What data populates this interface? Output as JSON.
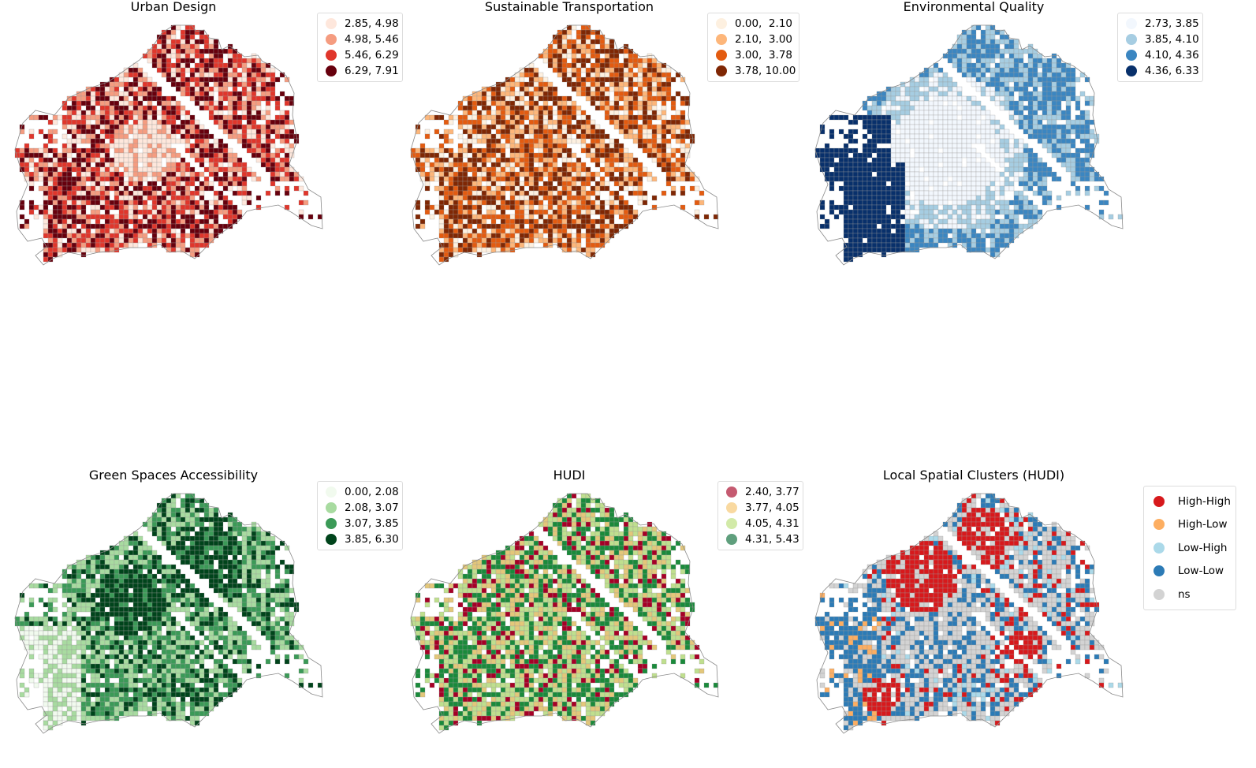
{
  "panels": [
    {
      "title": "Urban Design",
      "legend": [
        {
          "label": "2.85, 4.98",
          "color": "#fee7dc"
        },
        {
          "label": "4.98, 5.46",
          "color": "#f59c80"
        },
        {
          "label": "5.46, 6.29",
          "color": "#e0362b"
        },
        {
          "label": "6.29, 7.91",
          "color": "#67000d"
        }
      ],
      "pattern": "urban"
    },
    {
      "title": "Sustainable Transportation",
      "legend": [
        {
          "label": "0.00,  2.10",
          "color": "#fdf0e0"
        },
        {
          "label": "2.10,  3.00",
          "color": "#fdb67a"
        },
        {
          "label": "3.00,  3.78",
          "color": "#e35b10"
        },
        {
          "label": "3.78, 10.00",
          "color": "#7f2704"
        }
      ],
      "pattern": "transport"
    },
    {
      "title": "Environmental Quality",
      "legend": [
        {
          "label": "2.73, 3.85",
          "color": "#f2f7fd"
        },
        {
          "label": "3.85, 4.10",
          "color": "#a6cde2"
        },
        {
          "label": "4.10, 4.36",
          "color": "#3b86c1"
        },
        {
          "label": "4.36, 6.33",
          "color": "#08306b"
        }
      ],
      "pattern": "environment"
    },
    {
      "title": "Green Spaces Accessibility",
      "legend": [
        {
          "label": "0.00, 2.08",
          "color": "#f1faee"
        },
        {
          "label": "2.08, 3.07",
          "color": "#a8dba0"
        },
        {
          "label": "3.07, 3.85",
          "color": "#3b9a57"
        },
        {
          "label": "3.85, 6.30",
          "color": "#00441b"
        }
      ],
      "pattern": "green"
    },
    {
      "title": "HUDI",
      "legend": [
        {
          "label": "2.40, 3.77",
          "color": "#c55a70"
        },
        {
          "label": "3.77, 4.05",
          "color": "#f9d9a0"
        },
        {
          "label": "4.05, 4.31",
          "color": "#d2eaa8"
        },
        {
          "label": "4.31, 5.43",
          "color": "#5f9f7d"
        }
      ],
      "map_colors": [
        "#a50026",
        "#e3c77a",
        "#bfdf8e",
        "#1a8a3b"
      ],
      "pattern": "hudi"
    },
    {
      "title": "Local Spatial Clusters (HUDI)",
      "legend": [
        {
          "label": "High-High",
          "color": "#d7191c"
        },
        {
          "label": "High-Low",
          "color": "#fdae61"
        },
        {
          "label": "Low-High",
          "color": "#abd9e9"
        },
        {
          "label": "Low-Low",
          "color": "#2c7bb6"
        },
        {
          "label": "ns",
          "color": "#d3d3d3"
        }
      ],
      "pattern": "lisa"
    }
  ]
}
